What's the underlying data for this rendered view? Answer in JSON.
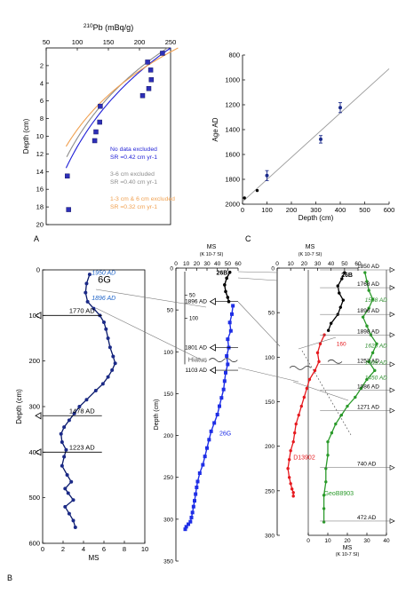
{
  "panel_letters": {
    "a": "A",
    "b": "B",
    "c": "C"
  },
  "chart_data": [
    {
      "panel": "A",
      "type": "scatter",
      "title": "",
      "xlabel": "210Pb (mBq/g)",
      "xlabel_parts": {
        "sup": "210",
        "main": "Pb (mBq/g)"
      },
      "ylabel": "Depth (cm)",
      "xlim": [
        50,
        250
      ],
      "ylim": [
        0,
        20
      ],
      "y_inverted": true,
      "x_axis_position": "top",
      "xticks": [
        "50",
        "100",
        "150",
        "200",
        "250"
      ],
      "yticks": [
        "2",
        "4",
        "6",
        "8",
        "10",
        "12",
        "14",
        "16",
        "18",
        "20"
      ],
      "points": [
        {
          "x": 237,
          "y": 0.6
        },
        {
          "x": 213,
          "y": 1.6
        },
        {
          "x": 218,
          "y": 2.5
        },
        {
          "x": 219,
          "y": 3.6
        },
        {
          "x": 215,
          "y": 4.6
        },
        {
          "x": 205,
          "y": 5.4
        },
        {
          "x": 137,
          "y": 6.6
        },
        {
          "x": 136,
          "y": 8.4
        },
        {
          "x": 130,
          "y": 9.5
        },
        {
          "x": 128,
          "y": 10.5
        },
        {
          "x": 84,
          "y": 14.5
        },
        {
          "x": 86,
          "y": 18.3
        }
      ],
      "series": [
        {
          "name": "No data excluded",
          "sr": "SR =0.42 cm yr-1",
          "color": "#1f1fd6"
        },
        {
          "name": "3-6 cm  excluded",
          "sr": "SR =0.40 cm yr-1",
          "color": "#8c8c8c"
        },
        {
          "name": "1-3 cm & 6 cm excluded",
          "sr": "SR =0.32 cm yr-1",
          "color": "#f0a050"
        }
      ],
      "legend_position": "lower-right"
    },
    {
      "panel": "C",
      "type": "scatter",
      "title": "",
      "xlabel": "Depth (cm)",
      "ylabel": "Age AD",
      "xlim": [
        0,
        600
      ],
      "ylim": [
        800,
        2000
      ],
      "y_inverted": true,
      "xticks": [
        "0",
        "100",
        "200",
        "300",
        "400",
        "500",
        "600"
      ],
      "yticks": [
        "800",
        "1000",
        "1200",
        "1400",
        "1600",
        "1800",
        "2000"
      ],
      "points": [
        {
          "x": 8,
          "y": 1950
        },
        {
          "x": 60,
          "y": 1890
        },
        {
          "x": 100,
          "y": 1770,
          "err": 40
        },
        {
          "x": 320,
          "y": 1478,
          "err": 30
        },
        {
          "x": 400,
          "y": 1223,
          "err": 40
        }
      ],
      "trend": [
        {
          "x": 0,
          "y": 1980
        },
        {
          "x": 600,
          "y": 910
        }
      ],
      "grid": false
    },
    {
      "panel": "B-left",
      "type": "line",
      "title": "6G",
      "xlabel": "MS",
      "ylabel": "Depth (cm)",
      "xlim": [
        0,
        10
      ],
      "ylim": [
        0,
        600
      ],
      "y_inverted": true,
      "xticks": [
        "0",
        "2",
        "4",
        "6",
        "8",
        "10"
      ],
      "yticks": [
        "0",
        "100",
        "200",
        "300",
        "400",
        "500",
        "600"
      ],
      "series": [
        {
          "name": "6G",
          "color": "#0a1a6a",
          "x": [
            4.6,
            4.3,
            4.2,
            4.4,
            5.0,
            5.6,
            6.0,
            6.2,
            6.4,
            6.6,
            6.9,
            7.1,
            6.8,
            6.4,
            5.9,
            5.2,
            4.3,
            3.6,
            3.1,
            2.6,
            2.1,
            1.8,
            1.9,
            2.3,
            2.1,
            1.9,
            2.4,
            2.8,
            2.2,
            2.5,
            3.0,
            2.2,
            2.6,
            3.0,
            3.2
          ],
          "y": [
            10,
            30,
            50,
            70,
            85,
            100,
            115,
            130,
            150,
            170,
            190,
            205,
            220,
            235,
            250,
            265,
            285,
            300,
            315,
            330,
            345,
            360,
            378,
            395,
            410,
            430,
            450,
            465,
            480,
            490,
            505,
            520,
            535,
            550,
            565
          ]
        }
      ],
      "annotations": [
        {
          "text": "1950 AD",
          "depth": 15,
          "style": "blue-italic"
        },
        {
          "text": "1896 AD",
          "depth": 70,
          "style": "blue-italic"
        },
        {
          "text": "1770 AD",
          "depth": 100,
          "style": "arrow"
        },
        {
          "text": "1478 AD",
          "depth": 320,
          "style": "arrow"
        },
        {
          "text": "1223 AD",
          "depth": 400,
          "style": "arrow"
        }
      ]
    },
    {
      "panel": "B-middle",
      "type": "line",
      "title": "",
      "xlabel": "MS",
      "xlabel_unit": "(K 10-7 SI)",
      "ylabel": "Depth (cm)",
      "xlim": [
        0,
        60
      ],
      "ylim": [
        0,
        350
      ],
      "y_inverted": true,
      "xticks": [
        "0",
        "10",
        "20",
        "30",
        "40",
        "50",
        "60"
      ],
      "yticks": [
        "0",
        "50",
        "100",
        "150",
        "200",
        "250",
        "300",
        "350"
      ],
      "inset_yticks": [
        "50",
        "100"
      ],
      "series": [
        {
          "name": "26B",
          "color": "#000000",
          "x": [
            52,
            49,
            47,
            48,
            50,
            51
          ],
          "y": [
            5,
            12,
            20,
            28,
            35,
            40
          ]
        },
        {
          "name": "26G",
          "color": "#1e2ee6",
          "x": [
            55,
            54,
            52,
            53,
            50,
            51,
            49,
            50,
            48,
            47,
            46,
            44,
            42,
            40,
            37,
            34,
            32,
            30,
            28,
            26,
            23,
            21,
            20,
            19,
            18,
            17,
            16,
            15,
            14,
            12,
            10,
            9
          ],
          "y": [
            45,
            55,
            65,
            75,
            85,
            95,
            105,
            115,
            125,
            135,
            145,
            155,
            165,
            175,
            185,
            195,
            205,
            215,
            225,
            235,
            245,
            255,
            262,
            270,
            278,
            285,
            292,
            298,
            303,
            306,
            309,
            312
          ]
        }
      ],
      "annotations": [
        "1896 AD",
        "1801 AD",
        "Hiatus",
        "1103 AD"
      ]
    },
    {
      "panel": "B-right",
      "type": "line",
      "title": "",
      "xlabel": "MS",
      "xlabel_unit": "(K 10-7 SI)",
      "ylim": [
        0,
        300
      ],
      "y_inverted": true,
      "top_xlim": [
        0,
        60
      ],
      "top_xticks": [
        "0",
        "10",
        "20",
        "30",
        "40",
        "50",
        "60"
      ],
      "bottom_xlim": [
        0,
        40
      ],
      "bottom_xticks": [
        "0",
        "10",
        "20",
        "30",
        "40"
      ],
      "yticks": [
        "0",
        "50",
        "100",
        "150",
        "200",
        "250",
        "300"
      ],
      "series": [
        {
          "name": "26B",
          "color": "#000000",
          "x": [
            50,
            48,
            45,
            46,
            49,
            47,
            45,
            40,
            38
          ],
          "y": [
            5,
            12,
            20,
            28,
            36,
            44,
            52,
            62,
            70
          ]
        },
        {
          "name": "D13902",
          "color": "#e6191e",
          "x": [
            35,
            32,
            30,
            31,
            28,
            24,
            22,
            20,
            18,
            16,
            14,
            13,
            12,
            10,
            9,
            8,
            9,
            10,
            11,
            12,
            12
          ],
          "y": [
            75,
            85,
            95,
            105,
            115,
            125,
            135,
            145,
            155,
            165,
            175,
            185,
            195,
            205,
            215,
            225,
            235,
            242,
            248,
            252,
            256
          ]
        },
        {
          "name": "GeoB8903",
          "color": "#2a9a2a",
          "x": [
            29,
            30,
            31,
            33,
            31,
            28,
            30,
            32,
            35,
            33,
            31,
            34,
            30,
            27,
            24,
            20,
            17,
            14,
            12,
            10,
            10,
            9,
            9,
            8,
            8,
            8
          ],
          "y": [
            5,
            15,
            25,
            35,
            45,
            55,
            65,
            75,
            85,
            95,
            105,
            115,
            125,
            135,
            145,
            155,
            165,
            175,
            185,
            195,
            210,
            225,
            240,
            255,
            270,
            285
          ]
        }
      ],
      "annotations": [
        {
          "text": "1850 AD",
          "depth": 2
        },
        {
          "text": "1768 AD",
          "depth": 22
        },
        {
          "text": "1558 AD",
          "depth": 38,
          "style": "green-italic"
        },
        {
          "text": "1896 AD",
          "depth": 52
        },
        {
          "text": "1898 AD",
          "depth": 75
        },
        {
          "text": "160",
          "depth": 87,
          "style": "red"
        },
        {
          "text": "1625 AD",
          "depth": 89,
          "style": "green-italic"
        },
        {
          "text": "1253 AD",
          "depth": 108
        },
        {
          "text": "1569 AD",
          "depth": 108,
          "style": "green-italic"
        },
        {
          "text": "1450 AD",
          "depth": 125,
          "style": "green-italic"
        },
        {
          "text": "1086 AD",
          "depth": 137
        },
        {
          "text": "1271 AD",
          "depth": 160
        },
        {
          "text": "740 AD",
          "depth": 224
        },
        {
          "text": "472 AD",
          "depth": 284
        }
      ]
    }
  ]
}
